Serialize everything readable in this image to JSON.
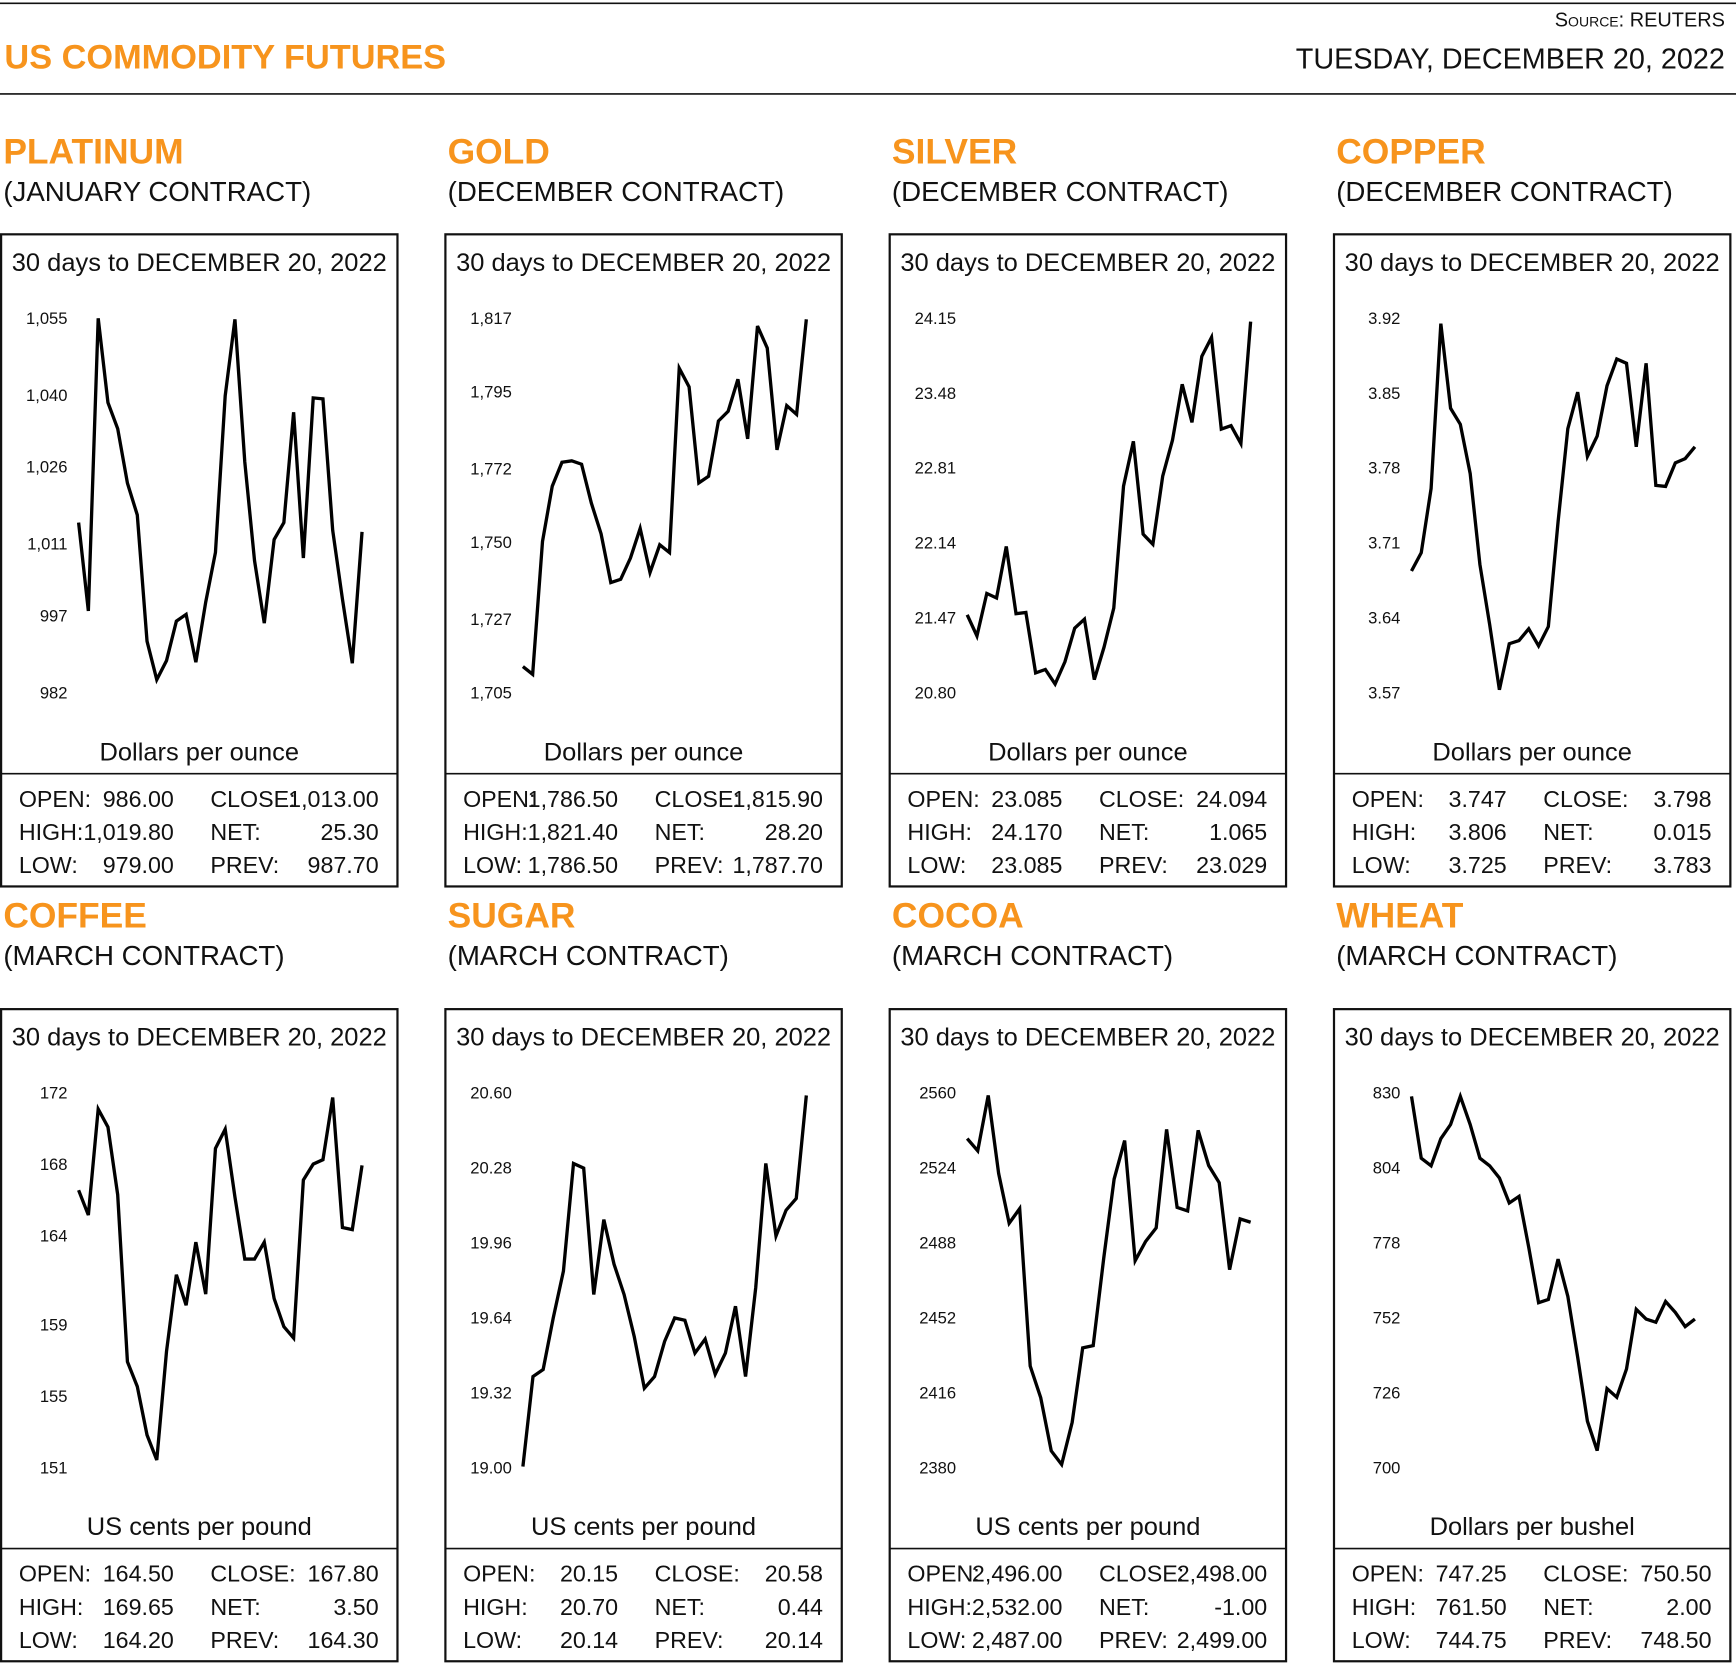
{
  "header": {
    "title": "US COMMODITY FUTURES",
    "source": "Source: REUTERS",
    "date": "TUESDAY, DECEMBER 20, 2022"
  },
  "chart_data": [
    {
      "type": "line",
      "title": "PLATINUM",
      "subtitle": "(JANUARY CONTRACT)",
      "note": "30 days to DECEMBER 20, 2022",
      "y_label": "Dollars per ounce",
      "color": "#000000",
      "values": [
        1015.2,
        998.0,
        1055,
        1038.6,
        1033.5,
        1022.9,
        1016.7,
        992.1,
        984.6,
        988.3,
        996.0,
        997.3,
        988.0,
        999.7,
        1009.4,
        1039.9,
        1054.8,
        1027.0,
        1007.8,
        995.6,
        1011.9,
        1015.2,
        1036.7,
        1008.3,
        1039.5,
        1039.3,
        1013.7,
        1000.3,
        987.8,
        1013.4
      ],
      "ylim": [
        982,
        1055
      ],
      "yticks": [
        982,
        997,
        {
          "value": 1011,
          "label": "1,011"
        },
        {
          "value": 1026,
          "label": "1,026"
        },
        {
          "value": 1040,
          "label": "1,040"
        },
        {
          "value": 1055,
          "label": "1,055"
        }
      ],
      "stats": [
        [
          "OPEN:",
          "986.00",
          "CLOSE:",
          "1,013.00"
        ],
        [
          "HIGH:",
          "1,019.80",
          "NET:",
          "25.30"
        ],
        [
          "LOW:",
          "979.00",
          "PREV:",
          "987.70"
        ]
      ]
    },
    {
      "type": "line",
      "title": "GOLD",
      "subtitle": "(DECEMBER CONTRACT)",
      "note": "30 days to DECEMBER 20, 2022",
      "y_label": "Dollars per ounce",
      "color": "#000000",
      "values": [
        1712.9,
        1710.6,
        1750.3,
        1766.8,
        1774.0,
        1774.4,
        1773.4,
        1761.8,
        1752.6,
        1738.0,
        1739.0,
        1745.3,
        1754.2,
        1741.0,
        1749.3,
        1747.0,
        1802.1,
        1796.5,
        1767.8,
        1769.8,
        1786.3,
        1789.2,
        1798.8,
        1781.0,
        1814.7,
        1808.1,
        1777.7,
        1790.9,
        1788.3,
        1816.7
      ],
      "ylim": [
        1705,
        1817
      ],
      "yticks": [
        {
          "value": 1705,
          "label": "1,705"
        },
        {
          "value": 1727,
          "label": "1,727"
        },
        {
          "value": 1750,
          "label": "1,750"
        },
        {
          "value": 1772,
          "label": "1,772"
        },
        {
          "value": 1795,
          "label": "1,795"
        },
        {
          "value": 1817,
          "label": "1,817"
        }
      ],
      "stats": [
        [
          "OPEN:",
          "1,786.50",
          "CLOSE:",
          "1,815.90"
        ],
        [
          "HIGH:",
          "1,821.40",
          "NET:",
          "28.20"
        ],
        [
          "LOW:",
          "1,786.50",
          "PREV:",
          "1,787.70"
        ]
      ]
    },
    {
      "type": "line",
      "title": "SILVER",
      "subtitle": "(DECEMBER CONTRACT)",
      "note": "30 days to DECEMBER 20, 2022",
      "y_label": "Dollars per ounce",
      "color": "#000000",
      "values": [
        21.5,
        21.31,
        21.69,
        21.65,
        22.11,
        21.51,
        21.52,
        20.98,
        21.01,
        20.88,
        21.08,
        21.38,
        21.46,
        20.92,
        21.21,
        21.56,
        22.65,
        23.05,
        22.22,
        22.13,
        22.74,
        23.06,
        23.56,
        23.22,
        23.81,
        23.98,
        23.16,
        23.19,
        23.03,
        24.12
      ],
      "ylim": [
        20.8,
        24.15
      ],
      "yticks": [
        {
          "value": 20.8,
          "label": "20.80"
        },
        21.47,
        22.14,
        22.81,
        23.48,
        24.15
      ],
      "stats": [
        [
          "OPEN:",
          "23.085",
          "CLOSE:",
          "24.094"
        ],
        [
          "HIGH:",
          "24.170",
          "NET:",
          "1.065"
        ],
        [
          "LOW:",
          "23.085",
          "PREV:",
          "23.029"
        ]
      ]
    },
    {
      "type": "line",
      "title": "COPPER",
      "subtitle": "(DECEMBER CONTRACT)",
      "note": "30 days to DECEMBER 20, 2022",
      "y_label": "Dollars per ounce",
      "color": "#000000",
      "values": [
        3.684,
        3.701,
        3.761,
        3.915,
        3.836,
        3.821,
        3.775,
        3.69,
        3.634,
        3.573,
        3.616,
        3.619,
        3.63,
        3.614,
        3.632,
        3.73,
        3.817,
        3.851,
        3.791,
        3.81,
        3.857,
        3.882,
        3.878,
        3.8,
        3.878,
        3.764,
        3.763,
        3.785,
        3.789,
        3.8
      ],
      "ylim": [
        3.57,
        3.92
      ],
      "yticks": [
        3.57,
        3.64,
        3.71,
        3.78,
        3.85,
        3.92
      ],
      "stats": [
        [
          "OPEN:",
          "3.747",
          "CLOSE:",
          "3.798"
        ],
        [
          "HIGH:",
          "3.806",
          "NET:",
          "0.015"
        ],
        [
          "LOW:",
          "3.725",
          "PREV:",
          "3.783"
        ]
      ]
    },
    {
      "type": "line",
      "title": "COFFEE",
      "subtitle": "(MARCH CONTRACT)",
      "note": "30 days to DECEMBER 20, 2022",
      "y_label": "US cents per pound",
      "color": "#000000",
      "values": [
        166.56,
        165.17,
        171.11,
        170.1,
        166.31,
        156.95,
        155.56,
        152.84,
        151.44,
        157.52,
        161.82,
        160.11,
        163.65,
        160.74,
        168.9,
        169.98,
        166.18,
        162.7,
        162.7,
        163.65,
        160.49,
        158.91,
        158.27,
        167.13,
        168.02,
        168.27,
        171.75,
        164.47,
        164.35,
        167.95
      ],
      "ylim": [
        151,
        172
      ],
      "yticks": [
        151,
        155,
        159,
        164,
        168,
        172
      ],
      "stats": [
        [
          "OPEN:",
          "164.50",
          "CLOSE:",
          "167.80"
        ],
        [
          "HIGH:",
          "169.65",
          "NET:",
          "3.50"
        ],
        [
          "LOW:",
          "164.20",
          "PREV:",
          "164.30"
        ]
      ]
    },
    {
      "type": "line",
      "title": "SUGAR",
      "subtitle": "(MARCH CONTRACT)",
      "note": "30 days to DECEMBER 20, 2022",
      "y_label": "US cents per pound",
      "color": "#000000",
      "values": [
        19.005,
        19.39,
        19.42,
        19.64,
        19.84,
        20.3,
        20.28,
        19.74,
        20.06,
        19.87,
        19.74,
        19.56,
        19.34,
        19.39,
        19.54,
        19.64,
        19.63,
        19.49,
        19.55,
        19.4,
        19.49,
        19.69,
        19.39,
        19.77,
        20.3,
        19.99,
        20.1,
        20.15,
        20.59
      ],
      "ylim": [
        19.0,
        20.6
      ],
      "yticks": [
        {
          "value": 19.0,
          "label": "19.00"
        },
        19.32,
        19.64,
        19.96,
        20.28,
        {
          "value": 20.6,
          "label": "20.60"
        }
      ],
      "stats": [
        [
          "OPEN:",
          "20.15",
          "CLOSE:",
          "20.58"
        ],
        [
          "HIGH:",
          "20.70",
          "NET:",
          "0.44"
        ],
        [
          "LOW:",
          "20.14",
          "PREV:",
          "20.14"
        ]
      ]
    },
    {
      "type": "line",
      "title": "COCOA",
      "subtitle": "(MARCH CONTRACT)",
      "note": "30 days to DECEMBER 20, 2022",
      "y_label": "US cents per pound",
      "color": "#000000",
      "values": [
        2538.2,
        2532.3,
        2558.9,
        2521.4,
        2497.5,
        2504.5,
        2428.9,
        2413.7,
        2388.2,
        2381.6,
        2401.8,
        2437.6,
        2438.7,
        2480.6,
        2518.7,
        2537.2,
        2479.5,
        2488.8,
        2495.3,
        2542.6,
        2505.1,
        2503.4,
        2542.1,
        2525.2,
        2517.0,
        2475.2,
        2499.6,
        2498.0
      ],
      "ylim": [
        2380,
        2560
      ],
      "yticks": [
        2380,
        2416,
        2452,
        2488,
        2524,
        2560
      ],
      "stats": [
        [
          "OPEN:",
          "2,496.00",
          "CLOSE:",
          "2,498.00"
        ],
        [
          "HIGH:",
          "2,532.00",
          "NET:",
          "-1.00"
        ],
        [
          "LOW:",
          "2,487.00",
          "PREV:",
          "2,499.00"
        ]
      ]
    },
    {
      "type": "line",
      "title": "WHEAT",
      "subtitle": "(MARCH CONTRACT)",
      "note": "30 days to DECEMBER 20, 2022",
      "y_label": "Dollars per bushel",
      "color": "#000000",
      "values": [
        828.9,
        807.4,
        804.8,
        814.2,
        819.1,
        828.9,
        819.1,
        807.4,
        804.8,
        800.6,
        791.9,
        794.2,
        776.5,
        757.3,
        758.4,
        772.4,
        759.5,
        738.4,
        716.2,
        706.0,
        727.5,
        724.5,
        734.3,
        755.0,
        751.6,
        750.5,
        757.7,
        753.9,
        749.0,
        751.6
      ],
      "ylim": [
        700,
        830
      ],
      "yticks": [
        700,
        726,
        752,
        778,
        804,
        830
      ],
      "stats": [
        [
          "OPEN:",
          "747.25",
          "CLOSE:",
          "750.50"
        ],
        [
          "HIGH:",
          "761.50",
          "NET:",
          "2.00"
        ],
        [
          "LOW:",
          "744.75",
          "PREV:",
          "748.50"
        ]
      ]
    }
  ]
}
